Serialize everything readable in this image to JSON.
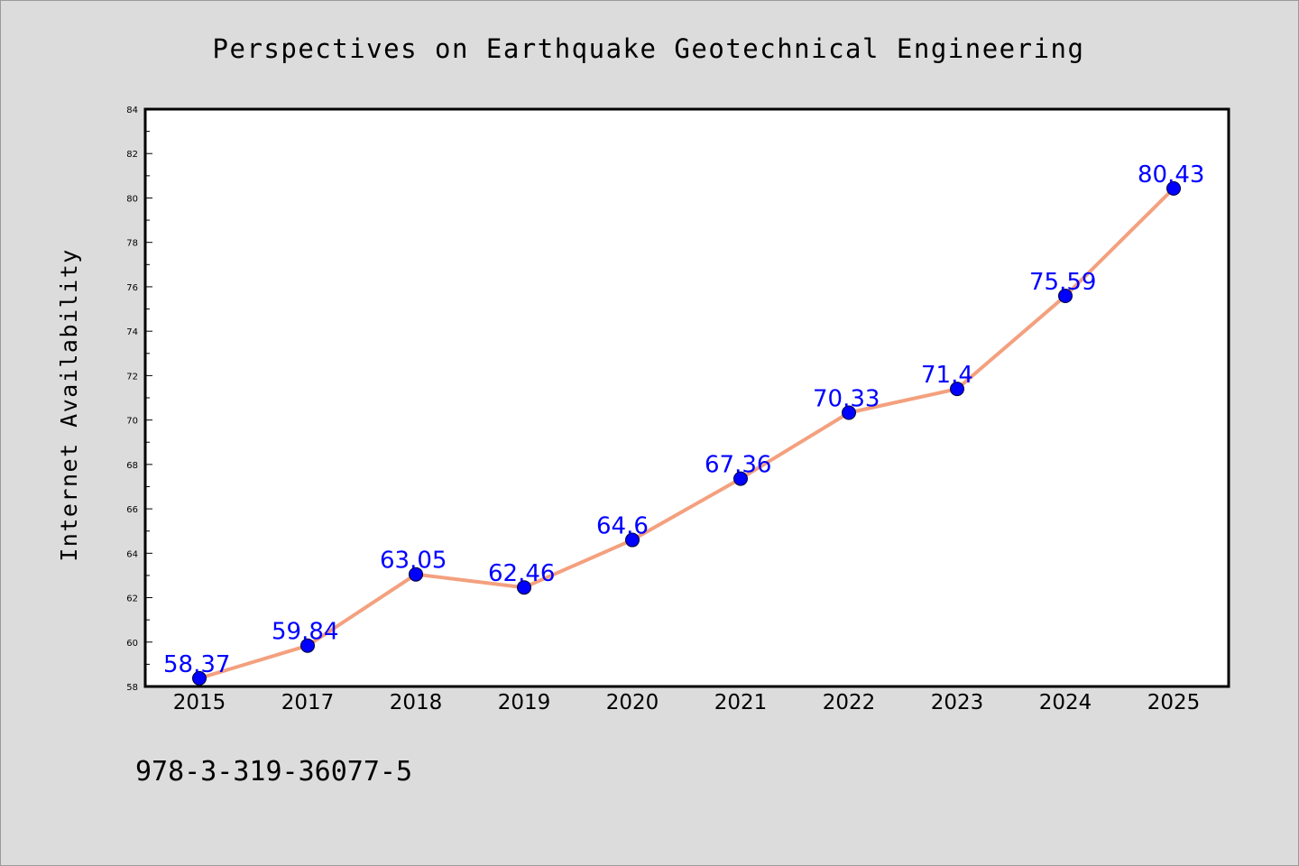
{
  "chart_data": {
    "type": "line",
    "title": "Perspectives on Earthquake Geotechnical Engineering",
    "xlabel": "",
    "ylabel": "Internet Availability",
    "categories": [
      "2015",
      "2017",
      "2018",
      "2019",
      "2020",
      "2021",
      "2022",
      "2023",
      "2024",
      "2025"
    ],
    "series": [
      {
        "values": [
          58.37,
          59.84,
          63.05,
          62.46,
          64.6,
          67.36,
          70.33,
          71.4,
          75.59,
          80.43
        ],
        "data_labels": [
          "58.37",
          "59.84",
          "63.05",
          "62.46",
          "64.6",
          "67.36",
          "70.33",
          "71.4",
          "75.59",
          "80.43"
        ]
      }
    ],
    "ylim": [
      58,
      84
    ],
    "y_ticks": [
      "58",
      "60",
      "62",
      "64",
      "66",
      "68",
      "70",
      "72",
      "74",
      "76",
      "78",
      "80",
      "82",
      "84"
    ],
    "grid": false,
    "legend": "none",
    "colors": {
      "line": "#f4a07e",
      "marker": "#0000ff",
      "data_label": "#0000ff"
    }
  },
  "footer_text": "978-3-319-36077-5"
}
